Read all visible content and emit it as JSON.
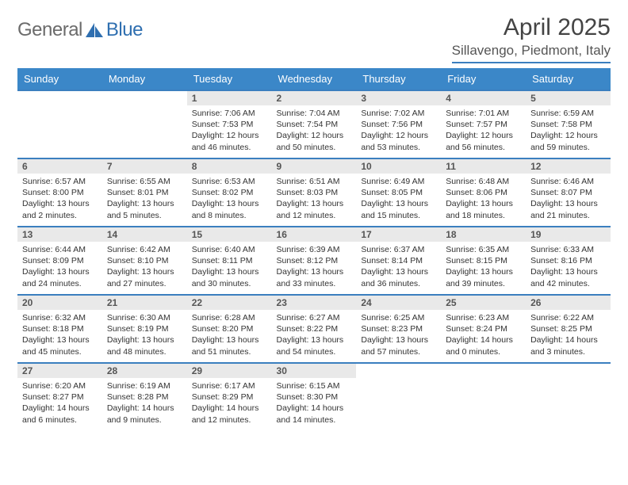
{
  "brand": {
    "part1": "General",
    "part2": "Blue"
  },
  "title": "April 2025",
  "location": "Sillavengo, Piedmont, Italy",
  "colors": {
    "accent": "#3b87c8",
    "rule": "#3b7fbf",
    "daynum_bg": "#e9e9e9",
    "text": "#333333",
    "logo_gray": "#6b6b6b",
    "logo_blue": "#2f6fb0"
  },
  "typography": {
    "title_fontsize": 30,
    "location_fontsize": 17,
    "dayheader_fontsize": 13,
    "daynum_fontsize": 12,
    "body_fontsize": 10.5
  },
  "day_headers": [
    "Sunday",
    "Monday",
    "Tuesday",
    "Wednesday",
    "Thursday",
    "Friday",
    "Saturday"
  ],
  "weeks": [
    [
      null,
      null,
      {
        "n": "1",
        "sr": "7:06 AM",
        "ss": "7:53 PM",
        "dl": "12 hours and 46 minutes."
      },
      {
        "n": "2",
        "sr": "7:04 AM",
        "ss": "7:54 PM",
        "dl": "12 hours and 50 minutes."
      },
      {
        "n": "3",
        "sr": "7:02 AM",
        "ss": "7:56 PM",
        "dl": "12 hours and 53 minutes."
      },
      {
        "n": "4",
        "sr": "7:01 AM",
        "ss": "7:57 PM",
        "dl": "12 hours and 56 minutes."
      },
      {
        "n": "5",
        "sr": "6:59 AM",
        "ss": "7:58 PM",
        "dl": "12 hours and 59 minutes."
      }
    ],
    [
      {
        "n": "6",
        "sr": "6:57 AM",
        "ss": "8:00 PM",
        "dl": "13 hours and 2 minutes."
      },
      {
        "n": "7",
        "sr": "6:55 AM",
        "ss": "8:01 PM",
        "dl": "13 hours and 5 minutes."
      },
      {
        "n": "8",
        "sr": "6:53 AM",
        "ss": "8:02 PM",
        "dl": "13 hours and 8 minutes."
      },
      {
        "n": "9",
        "sr": "6:51 AM",
        "ss": "8:03 PM",
        "dl": "13 hours and 12 minutes."
      },
      {
        "n": "10",
        "sr": "6:49 AM",
        "ss": "8:05 PM",
        "dl": "13 hours and 15 minutes."
      },
      {
        "n": "11",
        "sr": "6:48 AM",
        "ss": "8:06 PM",
        "dl": "13 hours and 18 minutes."
      },
      {
        "n": "12",
        "sr": "6:46 AM",
        "ss": "8:07 PM",
        "dl": "13 hours and 21 minutes."
      }
    ],
    [
      {
        "n": "13",
        "sr": "6:44 AM",
        "ss": "8:09 PM",
        "dl": "13 hours and 24 minutes."
      },
      {
        "n": "14",
        "sr": "6:42 AM",
        "ss": "8:10 PM",
        "dl": "13 hours and 27 minutes."
      },
      {
        "n": "15",
        "sr": "6:40 AM",
        "ss": "8:11 PM",
        "dl": "13 hours and 30 minutes."
      },
      {
        "n": "16",
        "sr": "6:39 AM",
        "ss": "8:12 PM",
        "dl": "13 hours and 33 minutes."
      },
      {
        "n": "17",
        "sr": "6:37 AM",
        "ss": "8:14 PM",
        "dl": "13 hours and 36 minutes."
      },
      {
        "n": "18",
        "sr": "6:35 AM",
        "ss": "8:15 PM",
        "dl": "13 hours and 39 minutes."
      },
      {
        "n": "19",
        "sr": "6:33 AM",
        "ss": "8:16 PM",
        "dl": "13 hours and 42 minutes."
      }
    ],
    [
      {
        "n": "20",
        "sr": "6:32 AM",
        "ss": "8:18 PM",
        "dl": "13 hours and 45 minutes."
      },
      {
        "n": "21",
        "sr": "6:30 AM",
        "ss": "8:19 PM",
        "dl": "13 hours and 48 minutes."
      },
      {
        "n": "22",
        "sr": "6:28 AM",
        "ss": "8:20 PM",
        "dl": "13 hours and 51 minutes."
      },
      {
        "n": "23",
        "sr": "6:27 AM",
        "ss": "8:22 PM",
        "dl": "13 hours and 54 minutes."
      },
      {
        "n": "24",
        "sr": "6:25 AM",
        "ss": "8:23 PM",
        "dl": "13 hours and 57 minutes."
      },
      {
        "n": "25",
        "sr": "6:23 AM",
        "ss": "8:24 PM",
        "dl": "14 hours and 0 minutes."
      },
      {
        "n": "26",
        "sr": "6:22 AM",
        "ss": "8:25 PM",
        "dl": "14 hours and 3 minutes."
      }
    ],
    [
      {
        "n": "27",
        "sr": "6:20 AM",
        "ss": "8:27 PM",
        "dl": "14 hours and 6 minutes."
      },
      {
        "n": "28",
        "sr": "6:19 AM",
        "ss": "8:28 PM",
        "dl": "14 hours and 9 minutes."
      },
      {
        "n": "29",
        "sr": "6:17 AM",
        "ss": "8:29 PM",
        "dl": "14 hours and 12 minutes."
      },
      {
        "n": "30",
        "sr": "6:15 AM",
        "ss": "8:30 PM",
        "dl": "14 hours and 14 minutes."
      },
      null,
      null,
      null
    ]
  ],
  "labels": {
    "sunrise": "Sunrise:",
    "sunset": "Sunset:",
    "daylight": "Daylight:"
  }
}
